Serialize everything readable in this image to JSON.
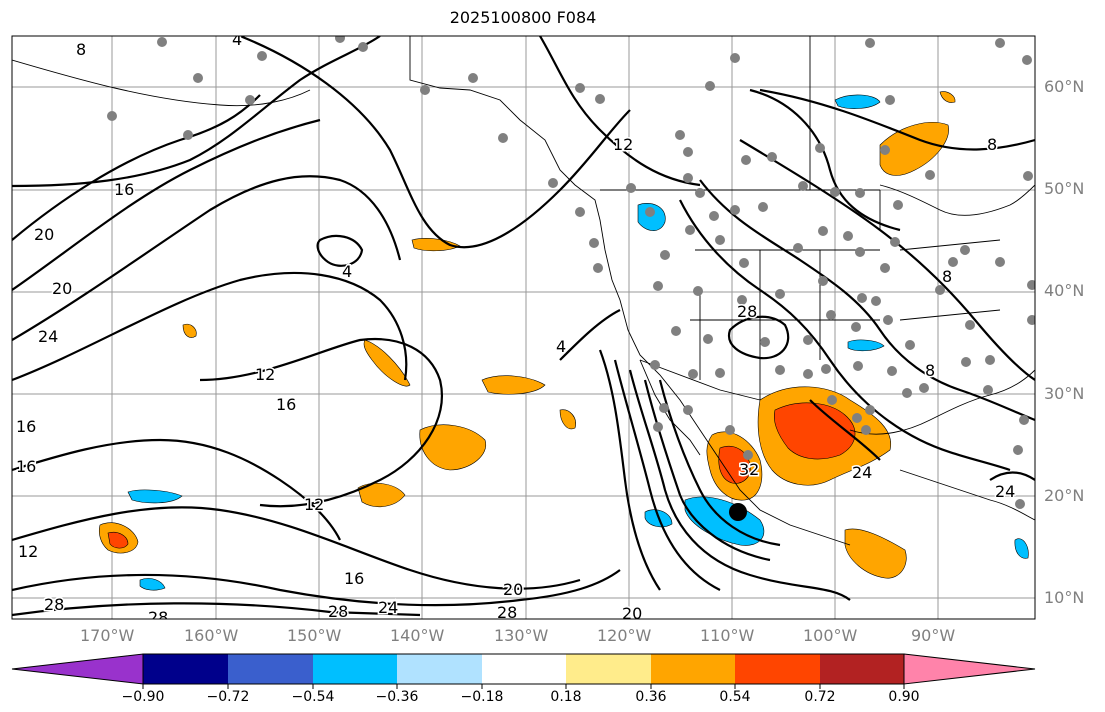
{
  "title": "2025100800 F084",
  "latitude_labels": [
    "60°N",
    "50°N",
    "40°N",
    "30°N",
    "20°N",
    "10°N"
  ],
  "longitude_labels": [
    "170°W",
    "160°W",
    "150°W",
    "140°W",
    "130°W",
    "120°W",
    "110°W",
    "100°W",
    "90°W"
  ],
  "colorbar": {
    "ticks": [
      "−0.90",
      "−0.72",
      "−0.54",
      "−0.36",
      "−0.18",
      "0.18",
      "0.36",
      "0.54",
      "0.72",
      "0.90"
    ],
    "colors": [
      "#9932cc",
      "#00008b",
      "#3a5fcd",
      "#00bfff",
      "#b0e2ff",
      "#ffffff",
      "#ffec8b",
      "#ffa500",
      "#ff4500",
      "#b22222",
      "#ff83aa"
    ]
  },
  "contour_labels": [
    "8",
    "4",
    "16",
    "20",
    "20",
    "24",
    "4",
    "12",
    "16",
    "12",
    "16",
    "16",
    "12",
    "16",
    "28",
    "28",
    "28",
    "24",
    "20",
    "28",
    "20",
    "4",
    "12",
    "28",
    "8",
    "8",
    "8",
    "32",
    "24",
    "24"
  ],
  "fill_colors": {
    "light_yellow": "#ffec8b",
    "orange": "#ffa500",
    "red_orange": "#ff4500",
    "light_blue": "#b0e2ff",
    "sky_blue": "#00bfff"
  }
}
